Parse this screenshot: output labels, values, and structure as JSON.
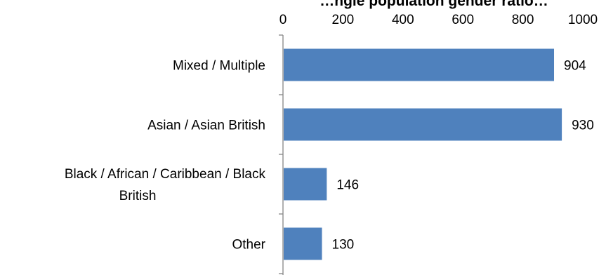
{
  "chart_data": {
    "type": "bar",
    "orientation": "horizontal",
    "title": "…ngle population gender ratio…",
    "categories": [
      "Mixed / Multiple",
      "Asian / Asian British",
      "Black / African / Caribbean / Black British",
      "Other"
    ],
    "category_lines": [
      [
        "Mixed / Multiple"
      ],
      [
        "Asian / Asian British"
      ],
      [
        "Black / African / Caribbean / Black",
        "British"
      ],
      [
        "Other"
      ]
    ],
    "values": [
      904,
      930,
      146,
      130
    ],
    "data_labels": [
      "904",
      "930",
      "146",
      "130"
    ],
    "xlim": [
      0,
      1000
    ],
    "xticks": [
      0,
      200,
      400,
      600,
      800,
      1000
    ],
    "xtick_labels": [
      "0",
      "200",
      "400",
      "600",
      "800",
      "1000"
    ],
    "xaxis_position": "top",
    "grid": false,
    "legend": "none",
    "colors": {
      "bar": "#4f81bd",
      "axis": "#868686",
      "text": "#000000"
    }
  }
}
